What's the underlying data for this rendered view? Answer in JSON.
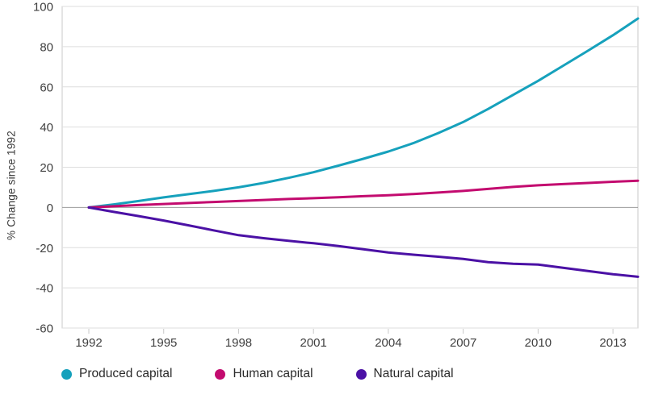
{
  "chart_data": {
    "type": "line",
    "title": "",
    "ylabel": "% Change since 1992",
    "xlabel": "",
    "x": [
      1992,
      1993,
      1994,
      1995,
      1996,
      1997,
      1998,
      1999,
      2000,
      2001,
      2002,
      2003,
      2004,
      2005,
      2006,
      2007,
      2008,
      2009,
      2010,
      2011,
      2012,
      2013,
      2014
    ],
    "series": [
      {
        "name": "Produced capital",
        "color": "#16a1bc",
        "values": [
          0,
          1.5,
          3.2,
          5.0,
          6.6,
          8.2,
          10.0,
          12.2,
          14.7,
          17.5,
          20.8,
          24.2,
          27.8,
          32.0,
          37.0,
          42.5,
          49.0,
          56.0,
          63.0,
          70.5,
          78.0,
          85.7,
          94.0
        ]
      },
      {
        "name": "Human capital",
        "color": "#c30b6f",
        "values": [
          0,
          0.6,
          1.2,
          1.7,
          2.2,
          2.7,
          3.2,
          3.7,
          4.2,
          4.6,
          5.1,
          5.6,
          6.1,
          6.7,
          7.4,
          8.2,
          9.2,
          10.2,
          11.0,
          11.6,
          12.2,
          12.8,
          13.3
        ]
      },
      {
        "name": "Natural capital",
        "color": "#4b11a5",
        "values": [
          0,
          -2.2,
          -4.3,
          -6.5,
          -8.9,
          -11.4,
          -13.8,
          -15.3,
          -16.6,
          -17.8,
          -19.2,
          -20.8,
          -22.4,
          -23.5,
          -24.5,
          -25.6,
          -27.2,
          -28.0,
          -28.4,
          -30.0,
          -31.6,
          -33.2,
          -34.5
        ]
      }
    ],
    "ylim": [
      -60,
      100
    ],
    "yticks": [
      100,
      80,
      60,
      40,
      20,
      0,
      -20,
      -40,
      -60
    ],
    "xticks": [
      1992,
      1995,
      1998,
      2001,
      2004,
      2007,
      2010,
      2013
    ],
    "grid": true,
    "legend_position": "bottom",
    "colors": {
      "gridline": "#dedede",
      "zero_line": "#9b9b9b",
      "border": "#c9c9c9",
      "tick_text": "#3f3f3f",
      "background": "#ffffff"
    }
  }
}
